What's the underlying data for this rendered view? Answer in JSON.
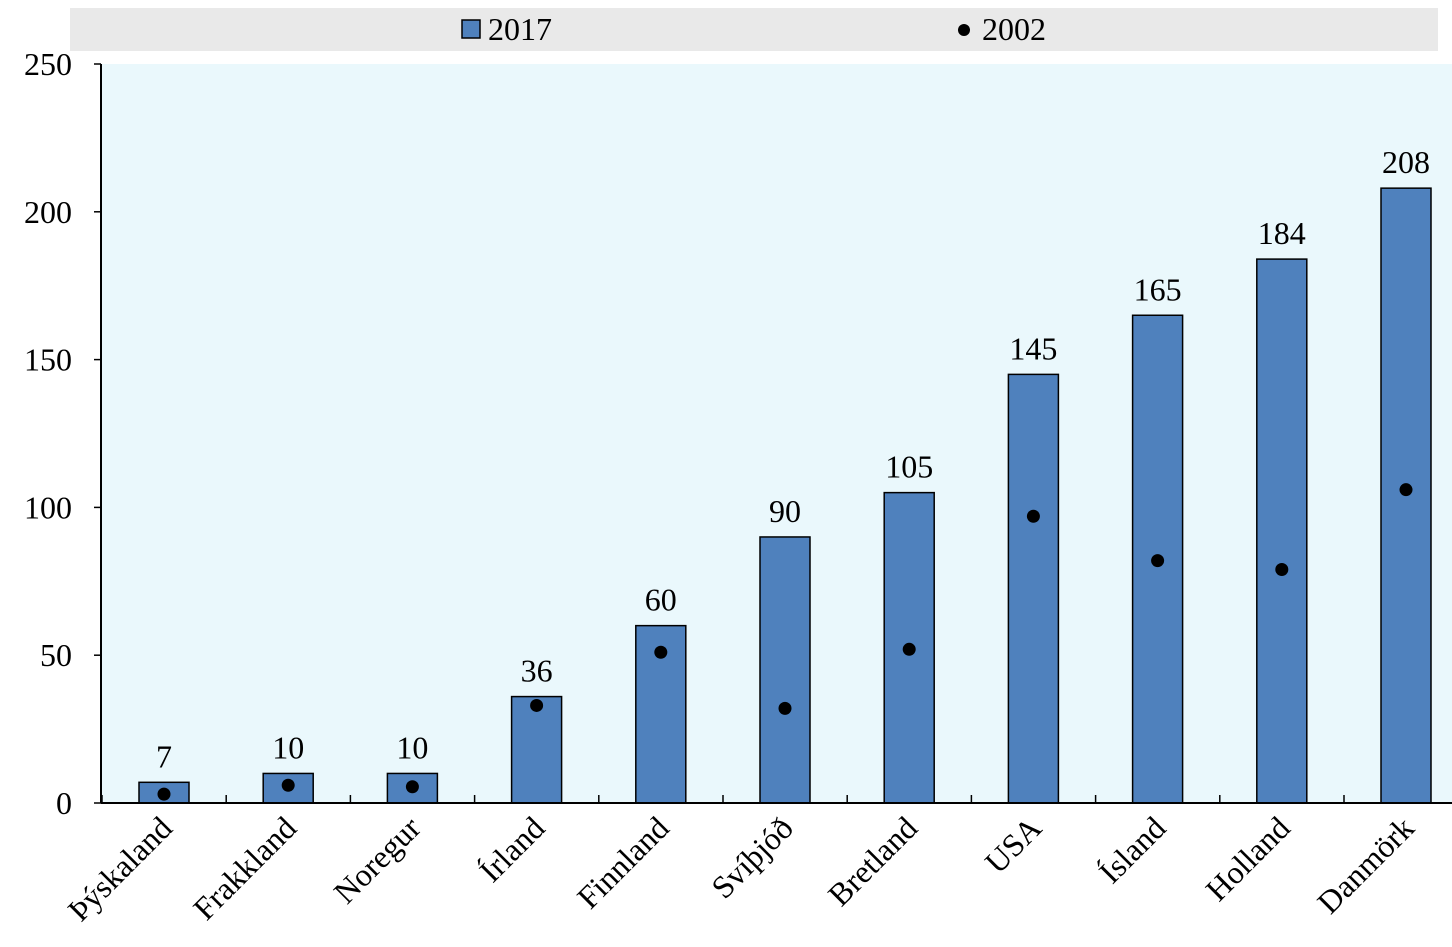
{
  "chart_data": {
    "type": "bar",
    "categories": [
      "Þýskaland",
      "Frakkland",
      "Noregur",
      "Írland",
      "Finnland",
      "Svíþjóð",
      "Bretland",
      "USA",
      "Ísland",
      "Holland",
      "Danmörk"
    ],
    "series": [
      {
        "name": "2017",
        "kind": "bar",
        "values": [
          7,
          10,
          10,
          36,
          60,
          90,
          105,
          145,
          165,
          184,
          208
        ],
        "data_labels": [
          "7",
          "10",
          "10",
          "36",
          "60",
          "90",
          "105",
          "145",
          "165",
          "184",
          "208"
        ]
      },
      {
        "name": "2002",
        "kind": "dot",
        "values": [
          3,
          6,
          5.5,
          33,
          51,
          32,
          52,
          97,
          82,
          79,
          106
        ]
      }
    ],
    "ylim": [
      0,
      250
    ],
    "yticks": [
      0,
      50,
      100,
      150,
      200,
      250
    ],
    "ytick_labels": [
      "0",
      "50",
      "100",
      "150",
      "200",
      "250"
    ],
    "title": "",
    "xlabel": "",
    "ylabel": "",
    "grid": false,
    "legend_position": "top",
    "colors": {
      "bar_fill": "#4f81bd",
      "bar_stroke": "#000000",
      "dot": "#000000",
      "plot_background": "#eaf8fc",
      "legend_background": "#e9e9e9",
      "axis": "#000000"
    }
  }
}
